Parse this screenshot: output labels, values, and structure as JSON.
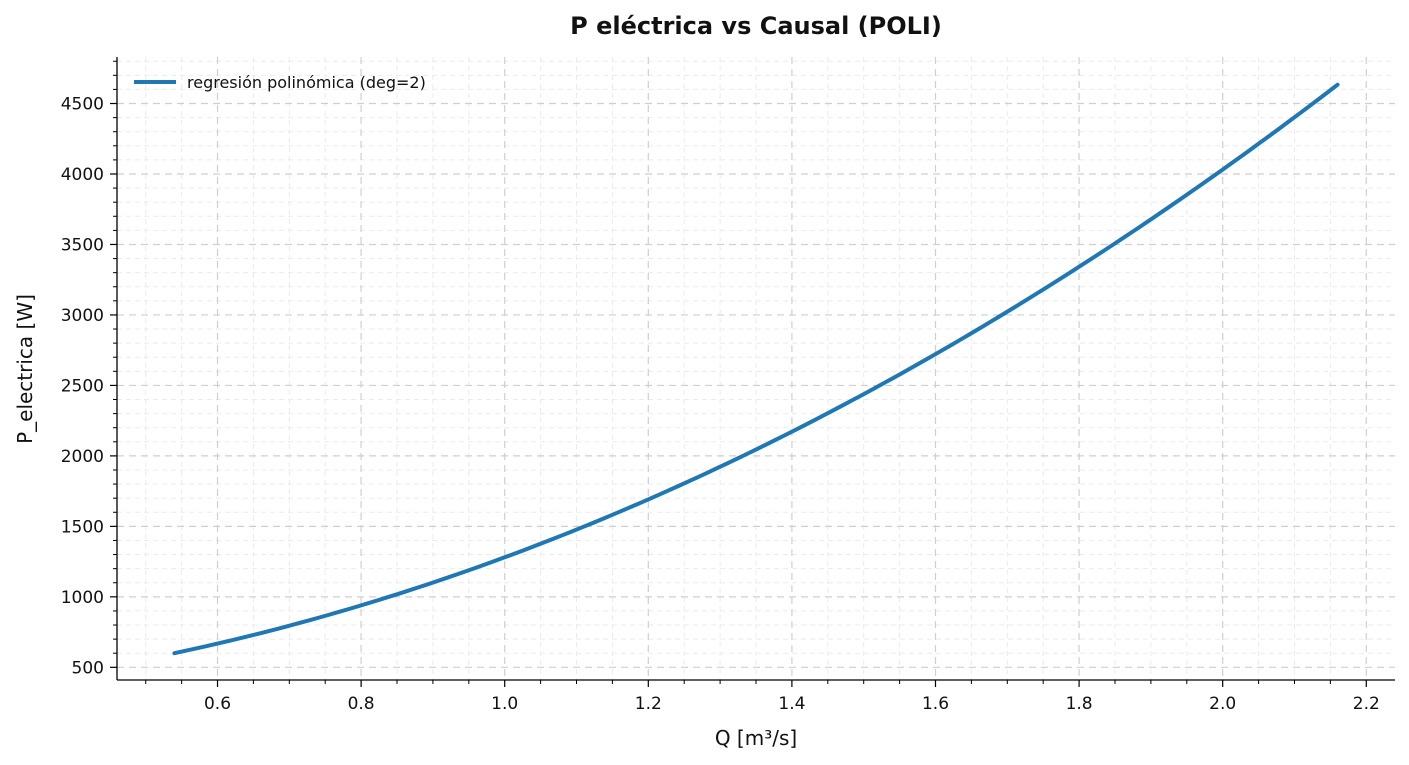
{
  "chart_data": {
    "type": "line",
    "title": "P eléctrica vs Causal (POLI)",
    "xlabel": "Q [m³/s]",
    "ylabel": "P_electrica [W]",
    "xlim": [
      0.46,
      2.24
    ],
    "ylim": [
      410,
      4830
    ],
    "x_major_ticks": [
      0.6,
      0.8,
      1.0,
      1.2,
      1.4,
      1.6,
      1.8,
      2.0,
      2.2
    ],
    "x_tick_labels": [
      "0.6",
      "0.8",
      "1.0",
      "1.2",
      "1.4",
      "1.6",
      "1.8",
      "2.0",
      "2.2"
    ],
    "x_minor_step": 0.05,
    "y_major_ticks": [
      500,
      1000,
      1500,
      2000,
      2500,
      3000,
      3500,
      4000,
      4500
    ],
    "y_tick_labels": [
      "500",
      "1000",
      "1500",
      "2000",
      "2500",
      "3000",
      "3500",
      "4000",
      "4500"
    ],
    "y_minor_step": 100,
    "grid": true,
    "legend_position": "top-left",
    "series": [
      {
        "name": "regresión polinómica (deg=2)",
        "color": "#1f77b4",
        "x": [
          0.54,
          0.6,
          0.8,
          1.0,
          1.2,
          1.4,
          1.6,
          1.8,
          2.0,
          2.16
        ],
        "y": [
          600,
          670,
          940,
          1275,
          1690,
          2175,
          2730,
          3340,
          4020,
          4640
        ]
      }
    ]
  }
}
